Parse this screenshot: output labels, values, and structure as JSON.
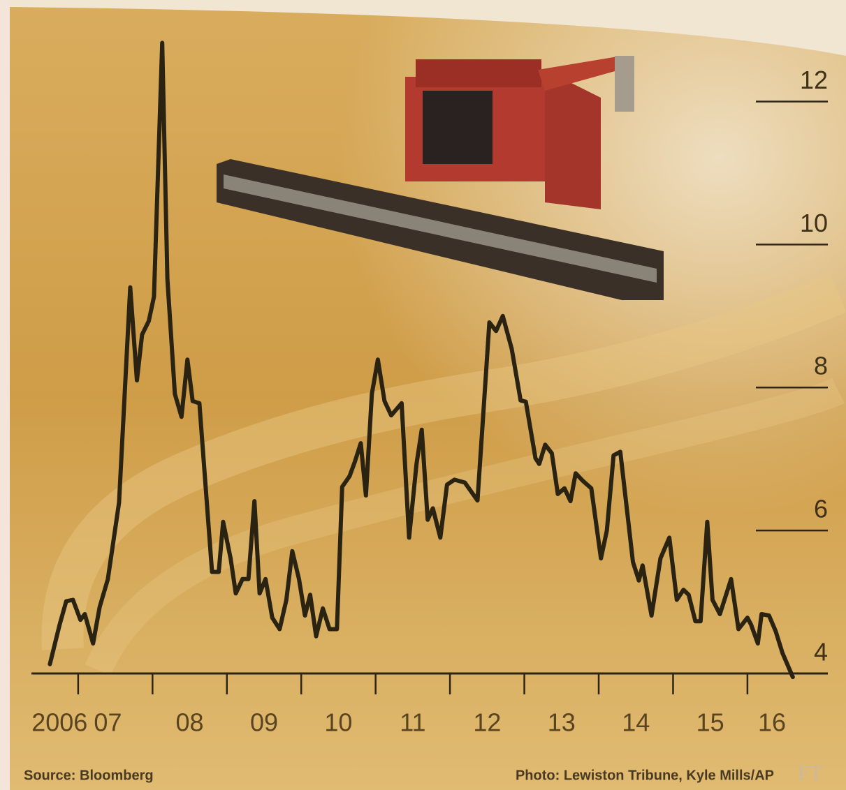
{
  "chart_data": {
    "type": "line",
    "x": [
      2006.62,
      2006.75,
      2006.84,
      2006.93,
      2007.03,
      2007.09,
      2007.2,
      2007.29,
      2007.4,
      2007.55,
      2007.7,
      2007.79,
      2007.86,
      2007.95,
      2008.02,
      2008.13,
      2008.2,
      2008.3,
      2008.39,
      2008.47,
      2008.54,
      2008.63,
      2008.8,
      2008.89,
      2008.95,
      2009.05,
      2009.12,
      2009.21,
      2009.29,
      2009.37,
      2009.44,
      2009.52,
      2009.61,
      2009.71,
      2009.8,
      2009.88,
      2009.97,
      2010.05,
      2010.12,
      2010.2,
      2010.29,
      2010.38,
      2010.48,
      2010.55,
      2010.65,
      2010.72,
      2010.8,
      2010.87,
      2010.95,
      2011.03,
      2011.12,
      2011.21,
      2011.35,
      2011.45,
      2011.55,
      2011.62,
      2011.7,
      2011.77,
      2011.87,
      2011.96,
      2012.06,
      2012.2,
      2012.37,
      2012.45,
      2012.53,
      2012.62,
      2012.71,
      2012.83,
      2012.95,
      2013.02,
      2013.15,
      2013.2,
      2013.28,
      2013.37,
      2013.45,
      2013.54,
      2013.62,
      2013.69,
      2013.79,
      2013.9,
      2014.03,
      2014.11,
      2014.2,
      2014.29,
      2014.39,
      2014.46,
      2014.54,
      2014.59,
      2014.71,
      2014.83,
      2014.95,
      2015.05,
      2015.14,
      2015.21,
      2015.3,
      2015.37,
      2015.46,
      2015.53,
      2015.63,
      2015.78,
      2015.88,
      2016.0,
      2016.05,
      2016.14,
      2016.19,
      2016.29,
      2016.38,
      2016.47,
      2016.61
    ],
    "values": [
      4.13,
      4.68,
      5.01,
      5.03,
      4.75,
      4.83,
      4.42,
      4.93,
      5.32,
      6.39,
      9.4,
      8.1,
      8.74,
      8.93,
      9.27,
      12.82,
      9.52,
      7.91,
      7.59,
      8.39,
      7.81,
      7.78,
      5.42,
      5.42,
      6.12,
      5.61,
      5.12,
      5.32,
      5.32,
      6.41,
      5.12,
      5.32,
      4.78,
      4.62,
      5.03,
      5.71,
      5.32,
      4.81,
      5.1,
      4.52,
      4.91,
      4.62,
      4.62,
      6.61,
      6.76,
      6.96,
      7.22,
      6.49,
      7.91,
      8.39,
      7.81,
      7.61,
      7.78,
      5.9,
      6.93,
      7.41,
      6.15,
      6.31,
      5.9,
      6.64,
      6.71,
      6.67,
      6.42,
      7.66,
      8.91,
      8.79,
      9.0,
      8.54,
      7.82,
      7.8,
      7.01,
      6.93,
      7.2,
      7.08,
      6.51,
      6.59,
      6.41,
      6.8,
      6.69,
      6.59,
      5.61,
      6.0,
      7.05,
      7.1,
      6.2,
      5.56,
      5.3,
      5.51,
      4.81,
      5.61,
      5.9,
      5.03,
      5.17,
      5.1,
      4.73,
      4.73,
      6.12,
      5.03,
      4.83,
      5.32,
      4.62,
      4.78,
      4.68,
      4.42,
      4.83,
      4.81,
      4.59,
      4.29,
      3.95
    ],
    "color": "#2a2312",
    "xlim": [
      2006.4,
      2017.1
    ],
    "xtick_marks": [
      2007,
      2008,
      2009,
      2010,
      2011,
      2012,
      2013,
      2014,
      2015,
      2016
    ],
    "xticks": [
      {
        "value": 2006.75,
        "label": "2006"
      },
      {
        "value": 2007.4,
        "label": "07"
      },
      {
        "value": 2008.5,
        "label": "08"
      },
      {
        "value": 2009.5,
        "label": "09"
      },
      {
        "value": 2010.5,
        "label": "10"
      },
      {
        "value": 2011.5,
        "label": "11"
      },
      {
        "value": 2012.5,
        "label": "12"
      },
      {
        "value": 2013.5,
        "label": "13"
      },
      {
        "value": 2014.5,
        "label": "14"
      },
      {
        "value": 2015.5,
        "label": "15"
      },
      {
        "value": 2016.33,
        "label": "16"
      }
    ],
    "ylim": [
      4,
      13
    ],
    "yticks": [
      4,
      6,
      8,
      10,
      12
    ],
    "source": "Source: Bloomberg",
    "photo_credit": "Photo: Lewiston Tribune, Kyle Mills/AP",
    "logo": "FT"
  }
}
